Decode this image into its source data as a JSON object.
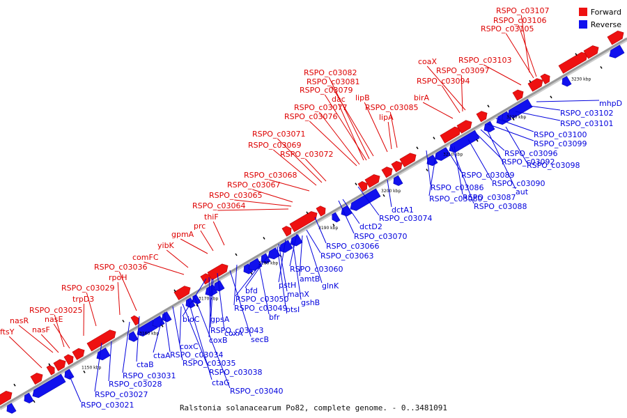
{
  "legend": {
    "forward": "Forward",
    "reverse": "Reverse"
  },
  "colors": {
    "forward": "#ee1111",
    "reverse": "#1111ee",
    "backbone": "#999999",
    "leader_fwd": "#dd0000",
    "leader_rev": "#0000dd"
  },
  "caption": "Ralstonia solanacearum Po82, complete genome. - 0..3481091",
  "ticks": [
    "1150 kbp",
    "3160 kbp",
    "3170 kbp",
    "3180 kbp",
    "3190 kbp",
    "3200 kbp",
    "3210 kbp",
    "3220 kbp",
    "3230 kbp"
  ],
  "forward_labels": [
    "RSPO_c03107",
    "RSPO_c03106",
    "RSPO_c03105",
    "RSPO_c03103",
    "coaX",
    "RSPO_c03097",
    "RSPO_c03094",
    "birA",
    "RSPO_c03082",
    "RSPO_c03081",
    "RSPO_c03079",
    "lipB",
    "dac",
    "RSPO_c03085",
    "RSPO_c03077",
    "lipA",
    "RSPO_c03076",
    "RSPO_c03071",
    "RSPO_c03069",
    "RSPO_c03072",
    "RSPO_c03068",
    "RSPO_c03067",
    "RSPO_c03065",
    "RSPO_c03064",
    "thiF",
    "prc",
    "gpmA",
    "yibK",
    "comFC",
    "RSPO_c03036",
    "rpoH",
    "RSPO_c03029",
    "trpD3",
    "RSPO_c03025",
    "nasR",
    "nasE",
    "nasF",
    "ftsY"
  ],
  "reverse_labels": [
    "mhpD",
    "RSPO_c03102",
    "RSPO_c03101",
    "RSPO_c03100",
    "RSPO_c03099",
    "RSPO_c03096",
    "RSPO_c03092",
    "RSPO_c03098",
    "RSPO_c03089",
    "RSPO_c03090",
    "aut",
    "RSPO_c03086",
    "RSPO_c03087",
    "RSPO_c03080",
    "RSPO_c03088",
    "dctA1",
    "RSPO_c03074",
    "dctD2",
    "RSPO_c03070",
    "RSPO_c03066",
    "RSPO_c03063",
    "RSPO_c03060",
    "amtB",
    "glnK",
    "pstH",
    "bfd",
    "manX",
    "gshB",
    "RSPO_c03050",
    "ptsI",
    "RSPO_c03049",
    "bfr",
    "bioC",
    "gpsA",
    "RSPO_c03043",
    "coxA",
    "coxB",
    "secB",
    "coxC",
    "ctaA",
    "RSPO_c03034",
    "RSPO_c03035",
    "ctaB",
    "RSPO_c03038",
    "RSPO_c03031",
    "ctaG",
    "RSPO_c03028",
    "RSPO_c03040",
    "RSPO_c03027",
    "RSPO_c03021"
  ]
}
